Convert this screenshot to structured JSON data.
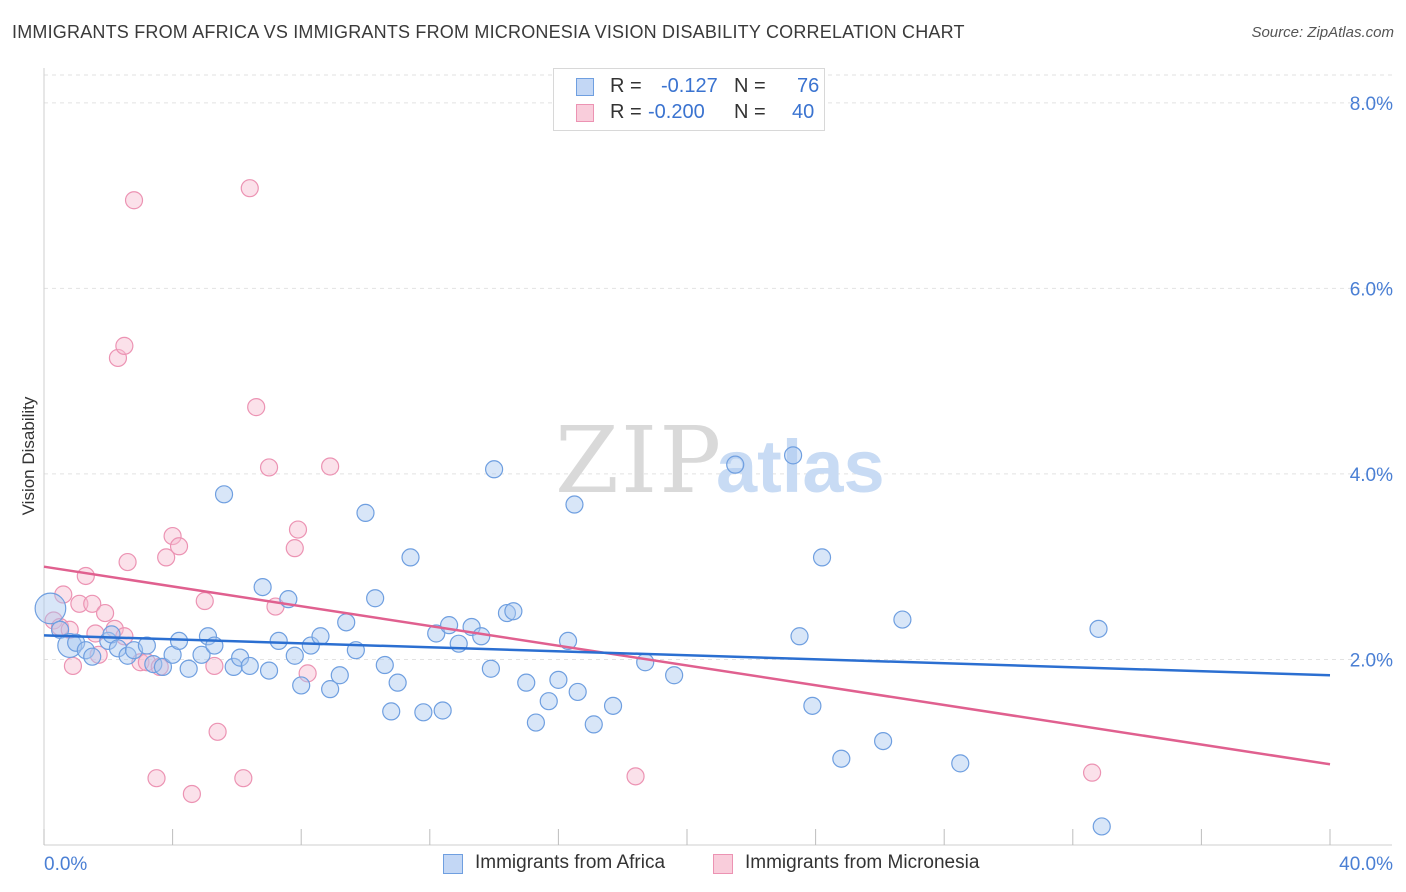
{
  "title": "IMMIGRANTS FROM AFRICA VS IMMIGRANTS FROM MICRONESIA VISION DISABILITY CORRELATION CHART",
  "source": "Source: ZipAtlas.com",
  "watermark": {
    "zip": "ZIP",
    "atlas": "atlas"
  },
  "legend": {
    "africa": {
      "r_label": "R =",
      "r_value": "-0.127",
      "n_label": "N =",
      "n_value": "76"
    },
    "micronesia": {
      "r_label": "R =",
      "r_value": "-0.200",
      "n_label": "N =",
      "n_value": "40"
    }
  },
  "colors": {
    "africa_fill": "#a9c7f0",
    "africa_stroke": "#6f9fe0",
    "africa_line": "#2b6fd1",
    "micronesia_fill": "#f6bcd0",
    "micronesia_stroke": "#ec93b3",
    "micronesia_line": "#e0608f",
    "tick": "#4a7fd4",
    "grid": "#e2e2e2"
  },
  "chart_data": {
    "type": "scatter",
    "title": "IMMIGRANTS FROM AFRICA VS IMMIGRANTS FROM MICRONESIA VISION DISABILITY CORRELATION CHART",
    "xlabel": "",
    "ylabel": "Vision Disability",
    "xlim": [
      0,
      40
    ],
    "ylim": [
      0,
      8.3
    ],
    "x_tick_labels": [
      "0.0%",
      "40.0%"
    ],
    "y_ticks": [
      2,
      4,
      6,
      8
    ],
    "y_tick_labels": [
      "2.0%",
      "4.0%",
      "6.0%",
      "8.0%"
    ],
    "legend_entries": [
      "Immigrants from Africa",
      "Immigrants from Micronesia"
    ],
    "series": [
      {
        "name": "Immigrants from Africa",
        "r": -0.127,
        "n": 76,
        "trend": [
          [
            0,
            2.26
          ],
          [
            40,
            1.83
          ]
        ],
        "points": [
          [
            0.2,
            2.55,
            1.8
          ],
          [
            0.5,
            2.32,
            1
          ],
          [
            0.8,
            2.15,
            1.4
          ],
          [
            1.0,
            2.18,
            1
          ],
          [
            1.3,
            2.1,
            1
          ],
          [
            1.5,
            2.03,
            1
          ],
          [
            2.0,
            2.2,
            1
          ],
          [
            2.1,
            2.27,
            1
          ],
          [
            2.3,
            2.12,
            1
          ],
          [
            2.6,
            2.04,
            1
          ],
          [
            2.8,
            2.1,
            1
          ],
          [
            3.2,
            2.15,
            1
          ],
          [
            3.4,
            1.95,
            1
          ],
          [
            3.7,
            1.92,
            1
          ],
          [
            4.0,
            2.05,
            1
          ],
          [
            4.2,
            2.2,
            1
          ],
          [
            4.5,
            1.9,
            1
          ],
          [
            4.9,
            2.05,
            1
          ],
          [
            5.1,
            2.25,
            1
          ],
          [
            5.3,
            2.15,
            1
          ],
          [
            5.6,
            3.78,
            1
          ],
          [
            5.9,
            1.92,
            1
          ],
          [
            6.1,
            2.02,
            1
          ],
          [
            6.4,
            1.93,
            1
          ],
          [
            6.8,
            2.78,
            1
          ],
          [
            7.0,
            1.88,
            1
          ],
          [
            7.3,
            2.2,
            1
          ],
          [
            7.6,
            2.65,
            1
          ],
          [
            7.8,
            2.04,
            1
          ],
          [
            8.0,
            1.72,
            1
          ],
          [
            8.3,
            2.15,
            1
          ],
          [
            8.6,
            2.25,
            1
          ],
          [
            8.9,
            1.68,
            1
          ],
          [
            9.2,
            1.83,
            1
          ],
          [
            9.4,
            2.4,
            1
          ],
          [
            9.7,
            2.1,
            1
          ],
          [
            10.0,
            3.58,
            1
          ],
          [
            10.3,
            2.66,
            1
          ],
          [
            10.6,
            1.94,
            1
          ],
          [
            10.8,
            1.44,
            1
          ],
          [
            11.0,
            1.75,
            1
          ],
          [
            11.4,
            3.1,
            1
          ],
          [
            11.8,
            1.43,
            1
          ],
          [
            12.2,
            2.28,
            1
          ],
          [
            12.4,
            1.45,
            1
          ],
          [
            12.6,
            2.37,
            1
          ],
          [
            12.9,
            2.17,
            1
          ],
          [
            13.3,
            2.35,
            1
          ],
          [
            13.6,
            2.25,
            1
          ],
          [
            13.9,
            1.9,
            1
          ],
          [
            14.0,
            4.05,
            1
          ],
          [
            14.4,
            2.5,
            1
          ],
          [
            14.6,
            2.52,
            1
          ],
          [
            15.0,
            1.75,
            1
          ],
          [
            15.3,
            1.32,
            1
          ],
          [
            15.7,
            1.55,
            1
          ],
          [
            16.0,
            1.78,
            1
          ],
          [
            16.3,
            2.2,
            1
          ],
          [
            16.5,
            3.67,
            1
          ],
          [
            16.6,
            1.65,
            1
          ],
          [
            17.1,
            1.3,
            1
          ],
          [
            17.7,
            1.5,
            1
          ],
          [
            18.7,
            1.97,
            1
          ],
          [
            19.6,
            1.83,
            1
          ],
          [
            21.5,
            4.1,
            1
          ],
          [
            23.3,
            4.2,
            1
          ],
          [
            23.5,
            2.25,
            1
          ],
          [
            23.9,
            1.5,
            1
          ],
          [
            24.2,
            3.1,
            1
          ],
          [
            24.8,
            0.93,
            1
          ],
          [
            26.1,
            1.12,
            1
          ],
          [
            26.7,
            2.43,
            1
          ],
          [
            28.5,
            0.88,
            1
          ],
          [
            32.8,
            2.33,
            1
          ],
          [
            32.9,
            0.2,
            1
          ]
        ]
      },
      {
        "name": "Immigrants from Micronesia",
        "r": -0.2,
        "n": 40,
        "trend": [
          [
            0,
            3.0
          ],
          [
            40,
            0.87
          ]
        ],
        "points": [
          [
            0.3,
            2.42,
            1
          ],
          [
            0.5,
            2.35,
            1
          ],
          [
            0.6,
            2.7,
            1
          ],
          [
            0.8,
            2.32,
            1
          ],
          [
            0.9,
            1.93,
            1
          ],
          [
            1.1,
            2.6,
            1
          ],
          [
            1.3,
            2.9,
            1
          ],
          [
            1.5,
            2.6,
            1
          ],
          [
            1.6,
            2.28,
            1
          ],
          [
            1.7,
            2.05,
            1
          ],
          [
            1.9,
            2.5,
            1
          ],
          [
            2.2,
            2.33,
            1
          ],
          [
            2.3,
            5.25,
            1
          ],
          [
            2.5,
            2.25,
            1
          ],
          [
            2.5,
            5.38,
            1
          ],
          [
            2.6,
            3.05,
            1
          ],
          [
            2.8,
            6.95,
            1
          ],
          [
            3.0,
            1.97,
            1
          ],
          [
            3.2,
            1.97,
            1
          ],
          [
            3.5,
            0.72,
            1
          ],
          [
            3.6,
            1.92,
            1
          ],
          [
            3.8,
            3.1,
            1
          ],
          [
            4.0,
            3.33,
            1
          ],
          [
            4.2,
            3.22,
            1
          ],
          [
            4.6,
            0.55,
            1
          ],
          [
            5.0,
            2.63,
            1
          ],
          [
            5.3,
            1.93,
            1
          ],
          [
            5.4,
            1.22,
            1
          ],
          [
            6.2,
            0.72,
            1
          ],
          [
            6.4,
            7.08,
            1
          ],
          [
            6.6,
            4.72,
            1
          ],
          [
            7.0,
            4.07,
            1
          ],
          [
            7.2,
            2.57,
            1
          ],
          [
            7.8,
            3.2,
            1
          ],
          [
            7.9,
            3.4,
            1
          ],
          [
            8.2,
            1.85,
            1
          ],
          [
            8.9,
            4.08,
            1
          ],
          [
            18.4,
            0.74,
            1
          ],
          [
            32.6,
            0.78,
            1
          ]
        ]
      }
    ]
  }
}
